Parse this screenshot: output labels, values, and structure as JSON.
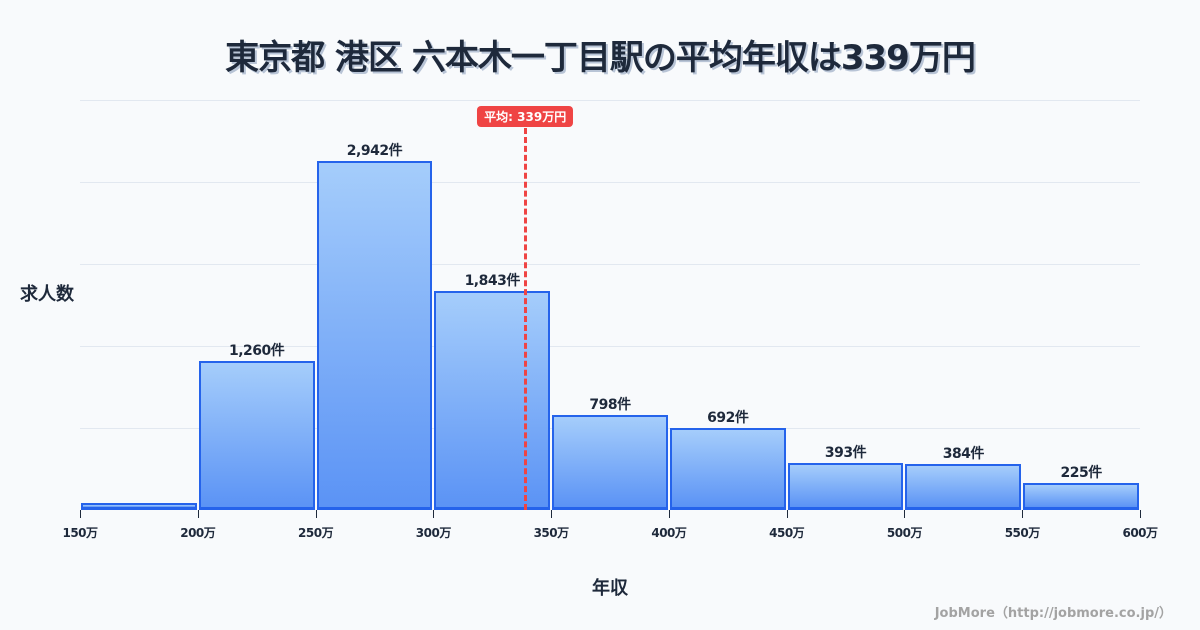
{
  "title": "東京都 港区 六本木一丁目駅の平均年収は339万円",
  "ylabel": "求人数",
  "xlabel": "年収",
  "credit": "JobMore（http://jobmore.co.jp/）",
  "average": {
    "value": 339,
    "label": "平均: 339万円",
    "color": "#ef4444"
  },
  "colors": {
    "bar_fill_top": "#a5cdfb",
    "bar_fill_bottom": "#5b93f5",
    "bar_border": "#2563eb",
    "background": "#f8fafc",
    "grid": "#e2e8f0"
  },
  "chart_data": {
    "type": "bar",
    "title": "東京都 港区 六本木一丁目駅の平均年収は339万円",
    "xlabel": "年収",
    "ylabel": "求人数",
    "categories": [
      "150-200万",
      "200-250万",
      "250-300万",
      "300-350万",
      "350-400万",
      "400-450万",
      "450-500万",
      "500-550万",
      "550-600万"
    ],
    "bin_edges": [
      150,
      200,
      250,
      300,
      350,
      400,
      450,
      500,
      550,
      600
    ],
    "values": [
      60,
      1260,
      2942,
      1843,
      798,
      692,
      393,
      384,
      225
    ],
    "value_labels": [
      "",
      "1,260件",
      "2,942件",
      "1,843件",
      "798件",
      "692件",
      "393件",
      "384件",
      "225件"
    ],
    "x_tick_labels": [
      "150万",
      "200万",
      "250万",
      "300万",
      "350万",
      "400万",
      "450万",
      "500万",
      "550万",
      "600万"
    ],
    "xlim": [
      150,
      600
    ],
    "ylim": [
      0,
      3457
    ],
    "grid": true,
    "y_ticks_shown": false,
    "annotations": [
      {
        "type": "vline",
        "x": 339,
        "label": "平均: 339万円",
        "style": "dashed",
        "color": "#ef4444"
      }
    ],
    "legend": null
  }
}
